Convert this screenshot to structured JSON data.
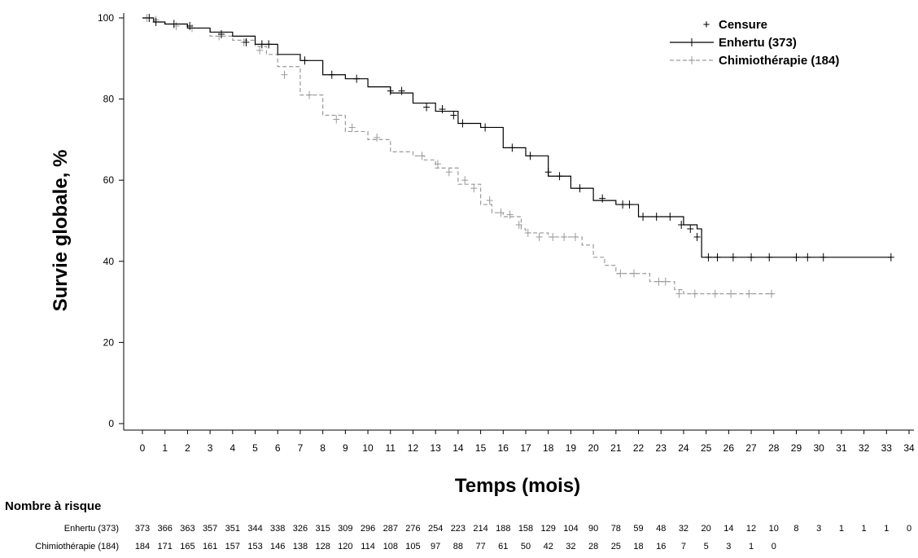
{
  "chart_data": {
    "type": "line",
    "title": "",
    "xlabel": "Temps (mois)",
    "ylabel": "Survie globale, %",
    "xlim": [
      0,
      34
    ],
    "ylim": [
      0,
      100
    ],
    "x_ticks": [
      0,
      1,
      2,
      3,
      4,
      5,
      6,
      7,
      8,
      9,
      10,
      11,
      12,
      13,
      14,
      15,
      16,
      17,
      18,
      19,
      20,
      21,
      22,
      23,
      24,
      25,
      26,
      27,
      28,
      29,
      30,
      31,
      32,
      33,
      34
    ],
    "y_ticks": [
      0,
      20,
      40,
      60,
      80,
      100
    ],
    "grid": false,
    "legend_position": "top-right",
    "legend": {
      "censor_label": "Censure",
      "censor_symbol": "+"
    },
    "series": [
      {
        "name": "Enhertu (373)",
        "color": "#000000",
        "style": "solid",
        "x": [
          0,
          0.5,
          1,
          2,
          3,
          4,
          5,
          6,
          7,
          8,
          9,
          10,
          11,
          12,
          13,
          14,
          15,
          16,
          17,
          18,
          19,
          20,
          21,
          22,
          23,
          24,
          24.6,
          24.8,
          25,
          27,
          29,
          31,
          33.2
        ],
        "y": [
          100,
          99,
          98.5,
          97.5,
          96.5,
          95.5,
          93.5,
          91,
          89.5,
          86,
          85,
          83,
          81.5,
          79,
          77,
          74,
          73,
          68,
          66,
          61,
          58,
          55,
          54,
          51,
          51,
          49,
          48,
          41,
          41,
          41,
          41,
          41,
          41
        ],
        "censors": [
          [
            0.3,
            100
          ],
          [
            0.6,
            99
          ],
          [
            1.4,
            98.5
          ],
          [
            2.1,
            98
          ],
          [
            3.5,
            96
          ],
          [
            4.6,
            94
          ],
          [
            5.3,
            93.5
          ],
          [
            5.6,
            93.5
          ],
          [
            7.2,
            89.5
          ],
          [
            8.4,
            86
          ],
          [
            9.5,
            85
          ],
          [
            11,
            82
          ],
          [
            11.5,
            82
          ],
          [
            12.6,
            78
          ],
          [
            13.3,
            77.5
          ],
          [
            13.8,
            76
          ],
          [
            14.2,
            74
          ],
          [
            15.2,
            73
          ],
          [
            16.4,
            68
          ],
          [
            17.2,
            66
          ],
          [
            18,
            62
          ],
          [
            18.5,
            61
          ],
          [
            19.4,
            58
          ],
          [
            20.4,
            55.5
          ],
          [
            21.3,
            54
          ],
          [
            21.6,
            54
          ],
          [
            22.2,
            51
          ],
          [
            22.8,
            51
          ],
          [
            23.4,
            51
          ],
          [
            23.9,
            49
          ],
          [
            24.3,
            48
          ],
          [
            24.6,
            46
          ],
          [
            25.1,
            41
          ],
          [
            25.5,
            41
          ],
          [
            26.2,
            41
          ],
          [
            27,
            41
          ],
          [
            27.8,
            41
          ],
          [
            29,
            41
          ],
          [
            29.5,
            41
          ],
          [
            30.2,
            41
          ],
          [
            33.2,
            41
          ]
        ]
      },
      {
        "name": "Chimiothérapie (184)",
        "color": "#9a9a9a",
        "style": "dashed",
        "x": [
          0,
          0.5,
          1,
          2,
          3,
          4,
          5,
          5.5,
          6,
          7,
          8,
          9,
          10,
          11,
          12,
          12.5,
          13,
          14,
          15,
          15.5,
          16,
          16.8,
          17,
          18,
          19,
          19.5,
          20,
          20.5,
          21,
          22,
          22.5,
          23,
          23.6,
          24,
          25,
          28
        ],
        "y": [
          100,
          99,
          98.5,
          97.5,
          95.5,
          94.5,
          93,
          91,
          88,
          81,
          76,
          72,
          70,
          67,
          66,
          65,
          63,
          59,
          54,
          52,
          51,
          48,
          47,
          46,
          46,
          44,
          41,
          39,
          37,
          37,
          35,
          35,
          33,
          32,
          32,
          32
        ],
        "censors": [
          [
            0.2,
            100
          ],
          [
            0.6,
            99.5
          ],
          [
            1.5,
            98
          ],
          [
            2.2,
            97.5
          ],
          [
            3.4,
            95.5
          ],
          [
            4.5,
            94
          ],
          [
            5.2,
            92
          ],
          [
            6.3,
            86
          ],
          [
            7.4,
            81
          ],
          [
            8.6,
            75
          ],
          [
            9.3,
            73
          ],
          [
            10.4,
            70.5
          ],
          [
            12.4,
            66
          ],
          [
            13.1,
            64
          ],
          [
            13.6,
            62
          ],
          [
            14.3,
            60
          ],
          [
            14.7,
            58
          ],
          [
            15.4,
            55
          ],
          [
            15.9,
            52
          ],
          [
            16.3,
            51.5
          ],
          [
            16.7,
            49
          ],
          [
            17.1,
            47
          ],
          [
            17.6,
            46
          ],
          [
            18.2,
            46
          ],
          [
            18.7,
            46
          ],
          [
            19.2,
            46
          ],
          [
            21.2,
            37
          ],
          [
            21.8,
            37
          ],
          [
            22.9,
            35
          ],
          [
            23.2,
            35
          ],
          [
            23.8,
            32
          ],
          [
            24.5,
            32
          ],
          [
            25.4,
            32
          ],
          [
            26.1,
            32
          ],
          [
            26.9,
            32
          ],
          [
            27.9,
            32
          ]
        ]
      }
    ],
    "risk_table": {
      "title": "Nombre à risque",
      "times": [
        0,
        1,
        2,
        3,
        4,
        5,
        6,
        7,
        8,
        9,
        10,
        11,
        12,
        13,
        14,
        15,
        16,
        17,
        18,
        19,
        20,
        21,
        22,
        23,
        24,
        25,
        26,
        27,
        28,
        29,
        30,
        31,
        32,
        33,
        34
      ],
      "rows": [
        {
          "label": "Enhertu (373)",
          "values": [
            "373",
            "366",
            "363",
            "357",
            "351",
            "344",
            "338",
            "326",
            "315",
            "309",
            "296",
            "287",
            "276",
            "254",
            "223",
            "214",
            "188",
            "158",
            "129",
            "104",
            "90",
            "78",
            "59",
            "48",
            "32",
            "20",
            "14",
            "12",
            "10",
            "8",
            "3",
            "1",
            "1",
            "1",
            "0"
          ]
        },
        {
          "label": "Chimiothérapie (184)",
          "values": [
            "184",
            "171",
            "165",
            "161",
            "157",
            "153",
            "146",
            "138",
            "128",
            "120",
            "114",
            "108",
            "105",
            "97",
            "88",
            "77",
            "61",
            "50",
            "42",
            "32",
            "28",
            "25",
            "18",
            "16",
            "7",
            "5",
            "3",
            "1",
            "0"
          ]
        }
      ]
    }
  }
}
